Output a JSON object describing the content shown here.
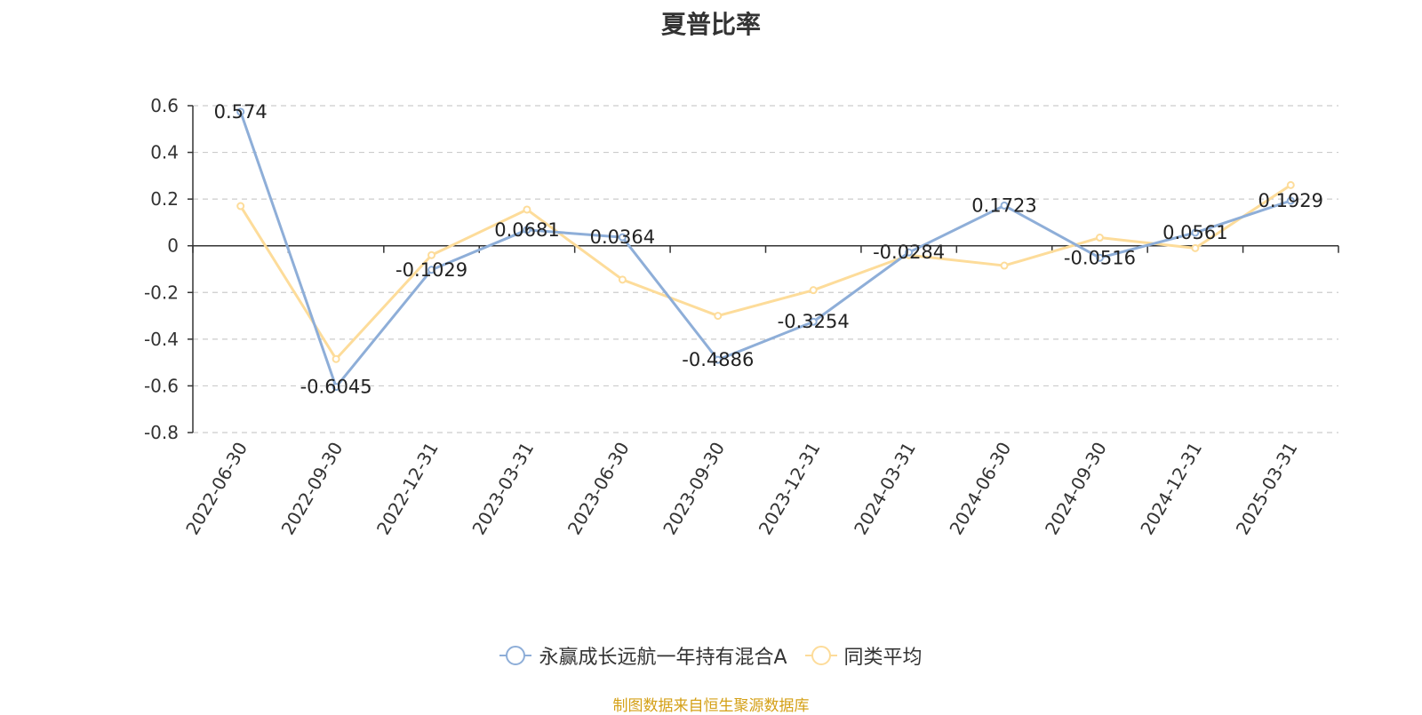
{
  "chart_data": {
    "type": "line",
    "title": "夏普比率",
    "categories": [
      "2022-06-30",
      "2022-09-30",
      "2022-12-31",
      "2023-03-31",
      "2023-06-30",
      "2023-09-30",
      "2023-12-31",
      "2024-03-31",
      "2024-06-30",
      "2024-09-30",
      "2024-12-31",
      "2025-03-31"
    ],
    "series": [
      {
        "name": "永赢成长远航一年持有混合A",
        "color": "#8eaed8",
        "values": [
          0.574,
          -0.6045,
          -0.1029,
          0.0681,
          0.0364,
          -0.4886,
          -0.3254,
          -0.0284,
          0.1723,
          -0.0516,
          0.0561,
          0.1929
        ],
        "labels": [
          "0.574",
          "-0.6045",
          "-0.1029",
          "0.0681",
          "0.0364",
          "-0.4886",
          "-0.3254",
          "-0.0284",
          "0.1723",
          "-0.0516",
          "0.0561",
          "0.1929"
        ]
      },
      {
        "name": "同类平均",
        "color": "#fddc9a",
        "values": [
          0.17,
          -0.485,
          -0.04,
          0.155,
          -0.145,
          -0.3,
          -0.19,
          -0.04,
          -0.085,
          0.035,
          -0.01,
          0.26
        ]
      }
    ],
    "ylim": [
      -0.8,
      0.6
    ],
    "yticks": [
      "0.6",
      "0.4",
      "0.2",
      "0",
      "-0.2",
      "-0.4",
      "-0.6",
      "-0.8"
    ],
    "grid": true,
    "legend_position": "bottom"
  },
  "source": "制图数据来自恒生聚源数据库"
}
